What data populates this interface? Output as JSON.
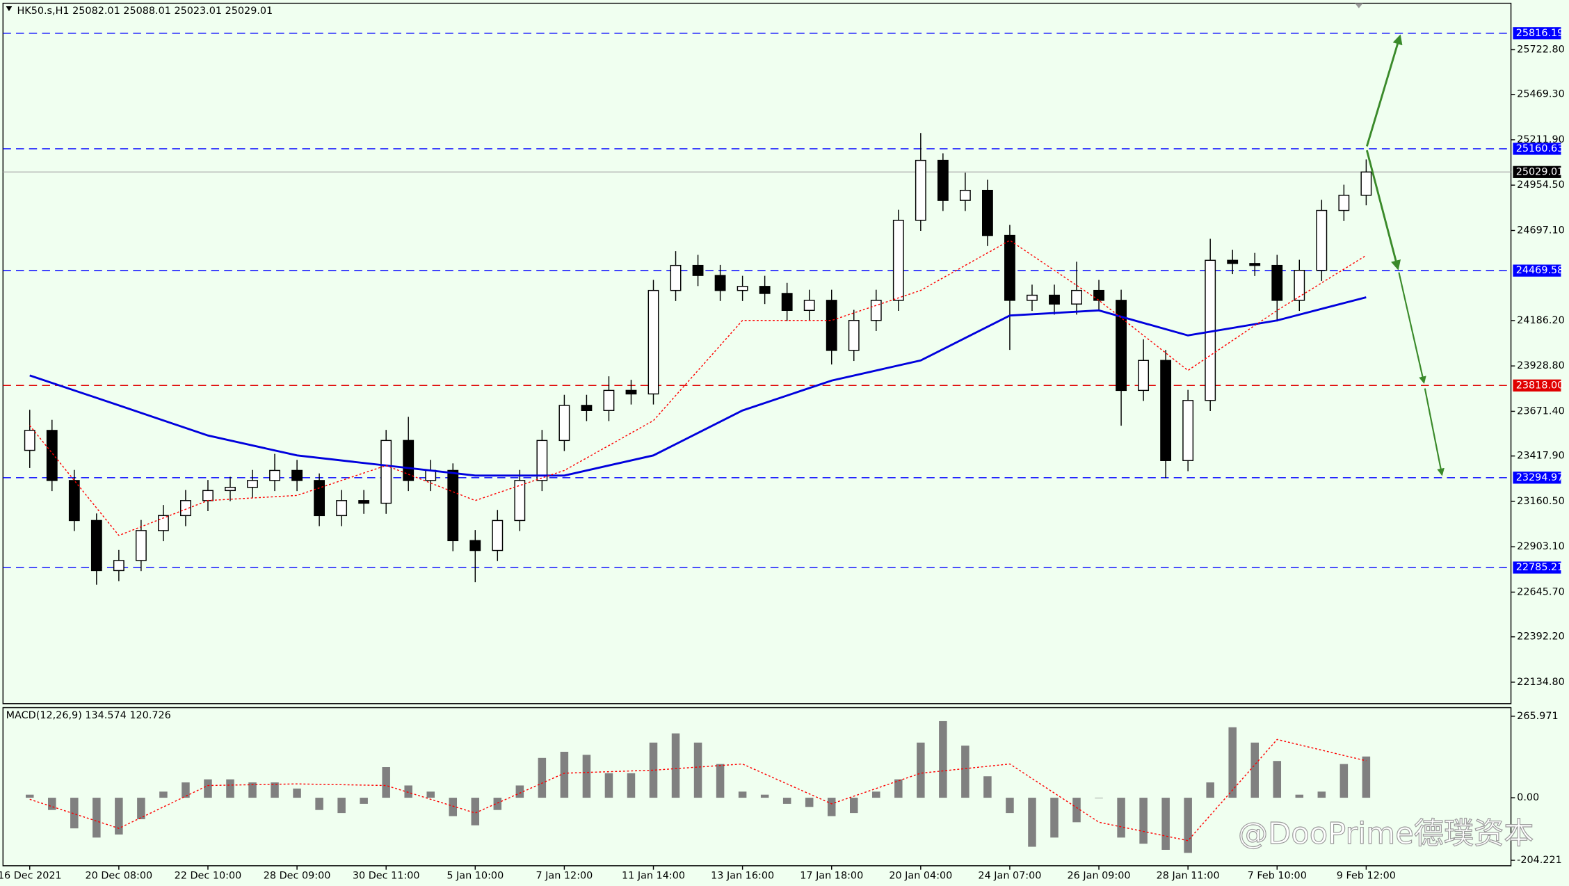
{
  "chart_data": [
    {
      "type": "candlestick",
      "title": "HK50.s,H1  25082.01 25088.01 25023.01 25029.01",
      "xlim": [
        -1.2,
        66.5
      ],
      "xticks": [
        {
          "value": 0,
          "label": "16 Dec 2021"
        },
        {
          "value": 4,
          "label": "20 Dec 08:00"
        },
        {
          "value": 8,
          "label": "22 Dec 10:00"
        },
        {
          "value": 12,
          "label": "28 Dec 09:00"
        },
        {
          "value": 16,
          "label": "30 Dec 11:00"
        },
        {
          "value": 20,
          "label": "5 Jan 10:00"
        },
        {
          "value": 24,
          "label": "7 Jan 12:00"
        },
        {
          "value": 28,
          "label": "11 Jan 14:00"
        },
        {
          "value": 32,
          "label": "13 Jan 16:00"
        },
        {
          "value": 36,
          "label": "17 Jan 18:00"
        },
        {
          "value": 40,
          "label": "20 Jan 04:00"
        },
        {
          "value": 44,
          "label": "24 Jan 07:00"
        },
        {
          "value": 48,
          "label": "26 Jan 09:00"
        },
        {
          "value": 52,
          "label": "28 Jan 11:00"
        },
        {
          "value": 56,
          "label": "7 Feb 10:00"
        },
        {
          "value": 60,
          "label": "9 Feb 12:00"
        }
      ],
      "ylim": [
        22013,
        25975
      ],
      "yticks": [
        {
          "value": 25722.8,
          "label": "25722.80"
        },
        {
          "value": 25469.3,
          "label": "25469.30"
        },
        {
          "value": 25211.9,
          "label": "25211.90"
        },
        {
          "value": 24954.5,
          "label": "24954.50"
        },
        {
          "value": 24697.1,
          "label": "24697.10"
        },
        {
          "value": 24186.2,
          "label": "24186.20"
        },
        {
          "value": 23928.8,
          "label": "23928.80"
        },
        {
          "value": 23671.4,
          "label": "23671.40"
        },
        {
          "value": 23417.9,
          "label": "23417.90"
        },
        {
          "value": 23160.5,
          "label": "23160.50"
        },
        {
          "value": 22903.1,
          "label": "22903.10"
        },
        {
          "value": 22645.7,
          "label": "22645.70"
        },
        {
          "value": 22392.2,
          "label": "22392.20"
        },
        {
          "value": 22134.8,
          "label": "22134.80"
        }
      ],
      "open": [
        23450,
        23563,
        23279,
        23052,
        22768,
        22825,
        22995,
        23080,
        23165,
        23222,
        23240,
        23279,
        23336,
        23279,
        23080,
        23165,
        23150,
        23506,
        23279,
        23336,
        22938,
        22882,
        23052,
        23279,
        23506,
        23705,
        23676,
        23790,
        23770,
        24357,
        24499,
        24442,
        24357,
        24380,
        24340,
        24244,
        24301,
        24017,
        24187,
        24301,
        24755,
        25095,
        24868,
        24925,
        24669,
        24301,
        24330,
        24280,
        24357,
        24301,
        23790,
        23960,
        23392,
        23733,
        24528,
        24510,
        24499,
        24301,
        24471,
        24811,
        24897
      ],
      "high": [
        23680,
        23623,
        23339,
        23092,
        22885,
        23055,
        23140,
        23225,
        23282,
        23300,
        23339,
        23430,
        23396,
        23319,
        23225,
        23225,
        23566,
        23640,
        23396,
        23376,
        22998,
        23112,
        23339,
        23566,
        23765,
        23765,
        23870,
        23850,
        24417,
        24580,
        24559,
        24502,
        24440,
        24440,
        24400,
        24361,
        24361,
        24247,
        24361,
        24815,
        25250,
        25135,
        25025,
        24985,
        24729,
        24390,
        24390,
        24520,
        24417,
        24361,
        24080,
        24020,
        23793,
        24650,
        24588,
        24570,
        24559,
        24531,
        24871,
        24957,
        25100
      ],
      "low": [
        23350,
        23219,
        22992,
        22688,
        22708,
        22765,
        22935,
        23020,
        23105,
        23162,
        23180,
        23219,
        23219,
        23020,
        23020,
        23090,
        23090,
        23219,
        23219,
        22878,
        22702,
        22822,
        22992,
        23219,
        23446,
        23616,
        23616,
        23710,
        23710,
        24297,
        24382,
        24297,
        24297,
        24280,
        24184,
        24184,
        23937,
        23957,
        24127,
        24241,
        24695,
        24808,
        24808,
        24609,
        24020,
        24241,
        24220,
        24220,
        24241,
        23590,
        23730,
        23292,
        23332,
        23673,
        24450,
        24439,
        24181,
        24241,
        24411,
        24751,
        24840
      ],
      "close": [
        23563,
        23279,
        23052,
        22768,
        22825,
        22995,
        23080,
        23165,
        23222,
        23240,
        23279,
        23336,
        23279,
        23080,
        23165,
        23150,
        23506,
        23279,
        23336,
        22938,
        22882,
        23052,
        23279,
        23506,
        23705,
        23676,
        23790,
        23770,
        24357,
        24499,
        24442,
        24357,
        24380,
        24340,
        24244,
        24301,
        24017,
        24187,
        24301,
        24755,
        25095,
        24868,
        24925,
        24669,
        24301,
        24330,
        24280,
        24357,
        24301,
        23790,
        23960,
        23392,
        23733,
        24528,
        24510,
        24499,
        24301,
        24471,
        24811,
        24897,
        25029.01
      ],
      "lines": [
        {
          "color": "#0000dd",
          "style": "solid",
          "x": [
            0,
            4,
            8,
            12,
            16,
            20,
            24,
            28,
            32,
            36,
            40,
            44,
            48,
            52,
            56,
            60
          ],
          "values": [
            23875,
            23705,
            23534,
            23421,
            23364,
            23307,
            23307,
            23421,
            23676,
            23846,
            23960,
            24215,
            24244,
            24102,
            24187,
            24318
          ]
        },
        {
          "color": "#ff0000",
          "style": "dotted",
          "x": [
            0,
            4,
            8,
            12,
            16,
            20,
            24,
            28,
            32,
            36,
            40,
            44,
            48,
            52,
            56,
            60
          ],
          "values": [
            23591,
            22967,
            23165,
            23194,
            23364,
            23165,
            23336,
            23619,
            24187,
            24187,
            24357,
            24641,
            24301,
            23903,
            24244,
            24556
          ]
        }
      ],
      "levels": [
        {
          "value": 25816.19,
          "color": "#0000ff"
        },
        {
          "value": 25160.63,
          "color": "#0000ff"
        },
        {
          "value": 24469.58,
          "color": "#0000ff"
        },
        {
          "value": 23818.0,
          "label": "23818.00",
          "color": "#e00000"
        },
        {
          "value": 23294.97,
          "color": "#0000ff"
        },
        {
          "value": 22785.21,
          "color": "#0000ff"
        }
      ],
      "current_price": 25029.01
    },
    {
      "type": "bar",
      "title": "MACD(12,26,9) 134.574 120.726",
      "ylim": [
        -222,
        294
      ],
      "yticks": [
        265.971,
        {
          "value": 0,
          "label": "0.00"
        },
        -204.221
      ],
      "color": "#808080",
      "values": [
        10,
        -40,
        -100,
        -130,
        -120,
        -70,
        20,
        50,
        60,
        60,
        50,
        50,
        30,
        -40,
        -50,
        -20,
        100,
        40,
        20,
        -60,
        -90,
        -40,
        40,
        130,
        150,
        140,
        80,
        80,
        180,
        210,
        180,
        110,
        20,
        10,
        -20,
        -30,
        -60,
        -50,
        20,
        60,
        180,
        250,
        170,
        70,
        -50,
        -160,
        -130,
        -80,
        0,
        -130,
        -150,
        -170,
        -180,
        50,
        230,
        180,
        120,
        10,
        20,
        110,
        134.574
      ],
      "signal": {
        "color": "#ff0000",
        "x": [
          0,
          4,
          8,
          12,
          16,
          20,
          24,
          28,
          32,
          36,
          40,
          44,
          48,
          52,
          56,
          60
        ],
        "values": [
          -5,
          -100,
          40,
          45,
          40,
          -50,
          80,
          90,
          110,
          -20,
          80,
          110,
          -80,
          -140,
          190,
          120.726
        ]
      }
    }
  ],
  "watermark": "@DooPrime德璞资本"
}
